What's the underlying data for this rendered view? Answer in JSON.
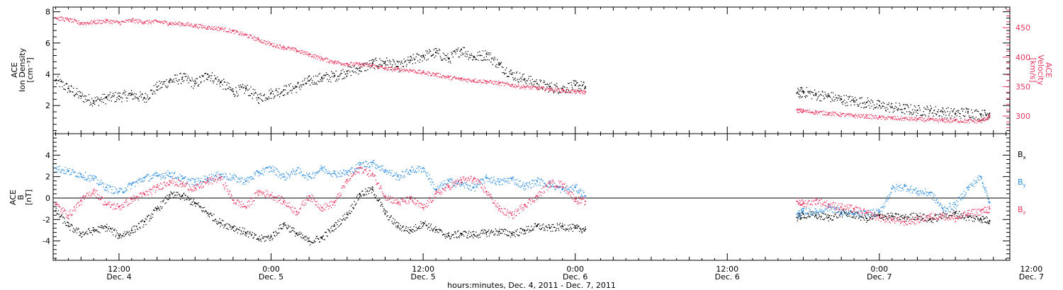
{
  "chart_data": [
    {
      "type": "scatter",
      "panel": "top",
      "x_unit": "hours since 2011-12-04 00:00",
      "xlim": [
        6.8,
        82.3
      ],
      "left_axis": {
        "label_lines": [
          "ACE",
          "Ion Density",
          "[cm⁻³]"
        ],
        "ylim": [
          0.2,
          8.3
        ],
        "ticks": [
          2,
          4,
          6,
          8
        ]
      },
      "right_axis": {
        "label_lines": [
          "ACE",
          "Velocity",
          "[km/s]"
        ],
        "ylim": [
          270,
          485
        ],
        "ticks": [
          300,
          350,
          400,
          450
        ]
      },
      "series": [
        {
          "name": "",
          "axis": "left",
          "color": "#000000",
          "x": [
            7.0,
            8.0,
            9.0,
            10.0,
            11.0,
            12.0,
            13.0,
            14.0,
            15.0,
            16.0,
            17.0,
            18.0,
            19.0,
            20.0,
            21.0,
            22.0,
            23.0,
            24.0,
            25.0,
            26.0,
            27.0,
            28.0,
            29.0,
            30.0,
            31.0,
            32.0,
            33.0,
            34.0,
            35.0,
            36.0,
            37.0,
            38.0,
            39.0,
            40.0,
            41.0,
            42.0,
            43.0,
            44.0,
            45.0,
            46.0,
            47.0,
            48.0,
            48.8,
            65.5,
            66.0,
            67.0,
            68.0,
            69.0,
            70.0,
            71.0,
            72.0,
            73.0,
            74.0,
            75.0,
            76.0,
            77.0,
            78.0,
            79.0,
            80.0,
            80.7
          ],
          "y": [
            3.6,
            3.1,
            2.6,
            2.3,
            2.5,
            2.6,
            2.7,
            2.5,
            3.2,
            3.6,
            3.8,
            3.4,
            4.0,
            3.5,
            2.9,
            3.1,
            2.5,
            2.8,
            3.0,
            3.2,
            3.6,
            3.8,
            3.9,
            4.2,
            4.4,
            4.7,
            4.8,
            4.5,
            4.9,
            5.2,
            5.4,
            5.0,
            5.6,
            5.1,
            5.3,
            4.6,
            4.0,
            3.7,
            3.4,
            3.2,
            3.1,
            3.3,
            3.2,
            2.8,
            2.9,
            2.7,
            2.6,
            2.4,
            2.3,
            2.2,
            2.0,
            1.9,
            1.8,
            1.7,
            1.7,
            1.6,
            1.5,
            1.6,
            1.4,
            1.5
          ]
        },
        {
          "name": "",
          "axis": "right",
          "color": "#e8355f",
          "x": [
            7.0,
            8.0,
            9.0,
            10.0,
            11.0,
            12.0,
            13.0,
            14.0,
            15.0,
            16.0,
            17.0,
            18.0,
            19.0,
            20.0,
            21.0,
            22.0,
            23.0,
            24.0,
            25.0,
            26.0,
            27.0,
            28.0,
            29.0,
            30.0,
            31.0,
            32.0,
            33.0,
            34.0,
            35.0,
            36.0,
            37.0,
            38.0,
            39.0,
            40.0,
            41.0,
            42.0,
            43.0,
            44.0,
            45.0,
            46.0,
            47.0,
            48.0,
            48.8,
            65.5,
            66.0,
            67.0,
            68.0,
            69.0,
            70.0,
            71.0,
            72.0,
            73.0,
            74.0,
            75.0,
            76.0,
            77.0,
            78.0,
            79.0,
            80.0,
            80.7
          ],
          "y": [
            467,
            464,
            458,
            460,
            462,
            459,
            463,
            460,
            461,
            458,
            457,
            454,
            451,
            449,
            444,
            438,
            430,
            422,
            417,
            412,
            405,
            398,
            392,
            389,
            388,
            386,
            381,
            380,
            378,
            374,
            371,
            366,
            363,
            361,
            359,
            356,
            353,
            350,
            348,
            346,
            344,
            342,
            341,
            310,
            309,
            307,
            305,
            303,
            301,
            300,
            298,
            297,
            296,
            295,
            294,
            293,
            293,
            292,
            292,
            300
          ]
        }
      ]
    },
    {
      "type": "scatter",
      "panel": "bottom",
      "x_unit": "hours since 2011-12-04 00:00",
      "xlim": [
        6.8,
        82.3
      ],
      "left_axis": {
        "label_lines": [
          "ACE",
          "B",
          "[nT]"
        ],
        "ylim": [
          -5.8,
          6.0
        ],
        "ticks": [
          -4,
          -2,
          0,
          2,
          4
        ]
      },
      "zero_line": true,
      "series": [
        {
          "name": "Bx",
          "label": "B",
          "subscript": "x",
          "color": "#000000",
          "x": [
            7.0,
            8.0,
            9.0,
            10.0,
            11.0,
            12.0,
            13.0,
            14.0,
            15.0,
            16.0,
            17.0,
            18.0,
            19.0,
            20.0,
            21.0,
            22.0,
            23.0,
            24.0,
            25.0,
            26.0,
            27.0,
            28.0,
            29.0,
            30.0,
            31.0,
            32.0,
            33.0,
            34.0,
            35.0,
            36.0,
            37.0,
            38.0,
            39.0,
            40.0,
            41.0,
            42.0,
            43.0,
            44.0,
            45.0,
            46.0,
            47.0,
            48.0,
            48.8,
            65.5,
            66.0,
            67.0,
            68.0,
            69.0,
            70.0,
            71.0,
            72.0,
            73.0,
            74.0,
            75.0,
            76.0,
            77.0,
            78.0,
            79.0,
            80.0,
            80.7
          ],
          "y": [
            -1.2,
            -2.6,
            -3.3,
            -3.0,
            -2.7,
            -3.5,
            -3.0,
            -2.2,
            -1.0,
            0.3,
            0.2,
            -0.5,
            -1.4,
            -2.3,
            -2.7,
            -3.2,
            -3.8,
            -3.6,
            -2.4,
            -3.3,
            -4.0,
            -3.7,
            -2.6,
            -1.5,
            0.4,
            0.8,
            -1.4,
            -2.6,
            -3.0,
            -2.3,
            -3.0,
            -3.5,
            -3.3,
            -3.4,
            -3.2,
            -3.1,
            -3.3,
            -3.0,
            -2.6,
            -2.8,
            -2.6,
            -2.8,
            -2.9,
            -1.8,
            -1.5,
            -1.6,
            -1.8,
            -1.4,
            -1.5,
            -1.9,
            -1.6,
            -1.7,
            -1.8,
            -1.6,
            -2.0,
            -1.6,
            -1.4,
            -1.8,
            -1.9,
            -2.1
          ]
        },
        {
          "name": "By",
          "label": "B",
          "subscript": "y",
          "color": "#2a8ce0",
          "x": [
            7.0,
            8.0,
            9.0,
            10.0,
            11.0,
            12.0,
            13.0,
            14.0,
            15.0,
            16.0,
            17.0,
            18.0,
            19.0,
            20.0,
            21.0,
            22.0,
            23.0,
            24.0,
            25.0,
            26.0,
            27.0,
            28.0,
            29.0,
            30.0,
            31.0,
            32.0,
            33.0,
            34.0,
            35.0,
            36.0,
            37.0,
            38.0,
            39.0,
            40.0,
            41.0,
            42.0,
            43.0,
            44.0,
            45.0,
            46.0,
            47.0,
            48.0,
            48.8,
            65.5,
            66.0,
            67.0,
            68.0,
            69.0,
            70.0,
            71.0,
            72.0,
            73.0,
            74.0,
            75.0,
            76.0,
            77.0,
            78.0,
            79.0,
            80.0,
            80.7
          ],
          "y": [
            2.8,
            2.5,
            2.2,
            1.8,
            1.0,
            0.6,
            1.3,
            1.9,
            2.1,
            2.3,
            1.8,
            1.5,
            1.9,
            2.2,
            1.9,
            1.6,
            2.4,
            2.8,
            2.0,
            2.6,
            2.0,
            2.8,
            2.3,
            2.4,
            3.1,
            3.3,
            2.6,
            2.0,
            2.6,
            2.8,
            0.8,
            1.6,
            1.3,
            1.0,
            1.9,
            1.5,
            1.8,
            1.1,
            1.6,
            1.3,
            0.8,
            1.0,
            0.2,
            -1.5,
            -1.2,
            -1.3,
            -0.8,
            -1.3,
            -1.5,
            -1.4,
            -1.3,
            0.9,
            1.1,
            0.6,
            0.5,
            -1.0,
            -0.6,
            1.0,
            2.0,
            -0.4
          ]
        },
        {
          "name": "Bz",
          "label": "B",
          "subscript": "z",
          "color": "#e8355f",
          "x": [
            7.0,
            8.0,
            9.0,
            10.0,
            11.0,
            12.0,
            13.0,
            14.0,
            15.0,
            16.0,
            17.0,
            18.0,
            19.0,
            20.0,
            21.0,
            22.0,
            23.0,
            24.0,
            25.0,
            26.0,
            27.0,
            28.0,
            29.0,
            30.0,
            31.0,
            32.0,
            33.0,
            34.0,
            35.0,
            36.0,
            37.0,
            38.0,
            39.0,
            40.0,
            41.0,
            42.0,
            43.0,
            44.0,
            45.0,
            46.0,
            47.0,
            48.0,
            48.8,
            65.5,
            66.0,
            67.0,
            68.0,
            69.0,
            70.0,
            71.0,
            72.0,
            73.0,
            74.0,
            75.0,
            76.0,
            77.0,
            78.0,
            79.0,
            80.0,
            80.7
          ],
          "y": [
            -0.6,
            -1.6,
            -0.2,
            0.7,
            -0.6,
            -0.8,
            -0.1,
            0.4,
            1.0,
            1.6,
            1.3,
            0.9,
            1.6,
            1.9,
            -0.2,
            -0.8,
            0.6,
            0.3,
            -0.3,
            -1.3,
            0.2,
            -0.9,
            -0.4,
            1.7,
            2.8,
            2.2,
            0.2,
            -0.4,
            -0.1,
            -0.9,
            0.4,
            1.1,
            1.7,
            1.8,
            0.6,
            -1.0,
            -1.6,
            -0.6,
            0.2,
            1.4,
            1.3,
            -0.1,
            -0.3,
            -0.3,
            -0.5,
            -0.2,
            -0.6,
            -0.8,
            -1.0,
            -1.4,
            -1.8,
            -2.0,
            -2.2,
            -2.0,
            -1.7,
            -1.6,
            -1.9,
            -1.4,
            -1.2,
            -1.0
          ]
        }
      ]
    }
  ],
  "x_axis": {
    "ticks": [
      {
        "x": 12,
        "time": "12:00",
        "day": "Dec. 4"
      },
      {
        "x": 24,
        "time": "0:00",
        "day": "Dec. 5"
      },
      {
        "x": 36,
        "time": "12:00",
        "day": "Dec. 5"
      },
      {
        "x": 48,
        "time": "0:00",
        "day": "Dec. 6"
      },
      {
        "x": 60,
        "time": "12:00",
        "day": "Dec. 6"
      },
      {
        "x": 72,
        "time": "0:00",
        "day": "Dec. 7"
      },
      {
        "x": 84,
        "time": "12:00",
        "day": "Dec. 7"
      }
    ],
    "minor_step": 1,
    "mid_step": 3,
    "label": "hours:minutes, Dec.  4, 2011 - Dec.  7, 2011"
  }
}
